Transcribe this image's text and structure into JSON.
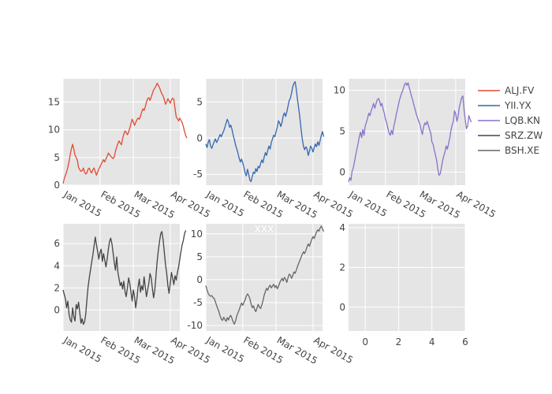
{
  "chart_data": {
    "type": "line",
    "layout": "subplot-grid-2x3",
    "colors": {
      "plot_bg": "#e5e5e5",
      "grid": "#ffffff",
      "text": "#444444"
    },
    "legend": {
      "placement": "right",
      "entries": [
        {
          "name": "ALJ.FV",
          "color": "#e24a33"
        },
        {
          "name": "YII.YX",
          "color": "#3467b0"
        },
        {
          "name": "LQB.KN",
          "color": "#8872cb"
        },
        {
          "name": "SRZ.ZW",
          "color": "#444444"
        },
        {
          "name": "BSH.XE",
          "color": "#666666"
        }
      ]
    },
    "panels": [
      {
        "series": "ALJ.FV",
        "color": "#e24a33",
        "xrange": [
          "2015-01-01",
          "2015-04-09"
        ],
        "yrange": [
          0,
          19.2
        ],
        "yticks": [
          0,
          5,
          10,
          15
        ],
        "xticks": [
          {
            "label": "Jan 2015",
            "date": "2015-01-01"
          },
          {
            "label": "Feb 2015",
            "date": "2015-02-01"
          },
          {
            "label": "Mar 2015",
            "date": "2015-03-01"
          },
          {
            "label": "Apr 2015",
            "date": "2015-04-01"
          }
        ],
        "start": "2015-01-01",
        "values": [
          0.3,
          1.2,
          1.8,
          2.4,
          3.2,
          4.3,
          5.6,
          6.6,
          7.4,
          6.5,
          5.4,
          5.0,
          4.5,
          3.2,
          2.8,
          2.5,
          2.6,
          3.1,
          2.4,
          2.0,
          2.2,
          2.9,
          3.1,
          2.5,
          2.2,
          2.8,
          3.1,
          2.4,
          1.8,
          2.4,
          2.9,
          3.3,
          3.8,
          4.2,
          4.6,
          4.2,
          4.8,
          5.2,
          5.8,
          5.5,
          5.2,
          5.0,
          4.8,
          5.1,
          6.1,
          6.9,
          7.5,
          8.0,
          7.6,
          7.3,
          8.4,
          9.2,
          9.8,
          9.5,
          9.1,
          9.6,
          10.3,
          11.1,
          11.9,
          11.4,
          10.8,
          11.3,
          11.8,
          12.1,
          11.9,
          12.5,
          13.2,
          13.8,
          13.5,
          14.1,
          15.0,
          15.6,
          15.8,
          15.3,
          15.9,
          16.6,
          17.2,
          17.5,
          17.9,
          18.4,
          18.0,
          17.6,
          17.0,
          16.5,
          16.1,
          15.4,
          14.6,
          15.0,
          15.6,
          15.2,
          14.8,
          15.4,
          15.7,
          15.5,
          13.8,
          12.3,
          12.0,
          11.6,
          12.1,
          11.7,
          11.3,
          10.6,
          9.7,
          8.9,
          8.5
        ]
      },
      {
        "series": "YII.YX",
        "color": "#3467b0",
        "xrange": [
          "2015-01-01",
          "2015-04-09"
        ],
        "yrange": [
          -6.5,
          8.2
        ],
        "yticks": [
          -5,
          0,
          5
        ],
        "xticks": [
          {
            "label": "Jan 2015",
            "date": "2015-01-01"
          },
          {
            "label": "Feb 2015",
            "date": "2015-02-01"
          },
          {
            "label": "Mar 2015",
            "date": "2015-03-01"
          },
          {
            "label": "Apr 2015",
            "date": "2015-04-01"
          }
        ],
        "start": "2015-01-01",
        "values": [
          -0.8,
          -1.3,
          -0.6,
          -0.2,
          -1.1,
          -1.4,
          -0.9,
          -0.5,
          -0.1,
          -0.6,
          -0.3,
          0.1,
          0.5,
          0.2,
          0.6,
          1.0,
          1.5,
          2.1,
          2.6,
          2.2,
          1.5,
          1.8,
          1.2,
          0.4,
          -0.2,
          -1.0,
          -1.5,
          -2.1,
          -2.8,
          -3.3,
          -2.9,
          -3.4,
          -4.0,
          -4.8,
          -5.2,
          -4.3,
          -5.0,
          -5.8,
          -6.0,
          -5.3,
          -4.7,
          -4.9,
          -4.2,
          -4.6,
          -3.9,
          -4.1,
          -3.5,
          -3.0,
          -3.4,
          -2.6,
          -2.0,
          -2.4,
          -1.7,
          -1.1,
          -1.5,
          -0.6,
          -0.1,
          0.4,
          0.2,
          0.9,
          1.5,
          2.4,
          2.1,
          1.6,
          2.2,
          3.1,
          3.5,
          3.0,
          3.6,
          4.4,
          5.2,
          5.5,
          6.2,
          7.1,
          7.6,
          7.8,
          6.7,
          5.3,
          4.1,
          2.8,
          1.2,
          -0.1,
          -1.1,
          -1.6,
          -1.2,
          -1.5,
          -2.4,
          -1.8,
          -1.1,
          -1.4,
          -1.9,
          -1.3,
          -0.8,
          -1.2,
          -0.5,
          -1.0,
          -0.3,
          0.4,
          0.9,
          0.2
        ]
      },
      {
        "series": "LQB.KN",
        "color": "#8872cb",
        "xrange": [
          "2015-01-01",
          "2015-04-09"
        ],
        "yrange": [
          -1.6,
          11.4
        ],
        "yticks": [
          0,
          5,
          10
        ],
        "xticks": [
          {
            "label": "Jan 2015",
            "date": "2015-01-01"
          },
          {
            "label": "Feb 2015",
            "date": "2015-02-01"
          },
          {
            "label": "Mar 2015",
            "date": "2015-03-01"
          },
          {
            "label": "Apr 2015",
            "date": "2015-04-01"
          }
        ],
        "start": "2015-01-01",
        "values": [
          -1.2,
          -0.7,
          -1.0,
          0.1,
          0.5,
          1.3,
          2.1,
          2.8,
          3.5,
          4.3,
          4.9,
          4.2,
          5.2,
          4.5,
          5.6,
          6.1,
          6.6,
          7.2,
          6.9,
          7.5,
          7.9,
          8.4,
          7.8,
          8.3,
          8.8,
          9.0,
          8.7,
          8.1,
          8.4,
          7.7,
          7.2,
          6.5,
          6.0,
          5.4,
          4.8,
          4.5,
          5.1,
          4.6,
          5.6,
          6.2,
          7.0,
          7.6,
          8.3,
          8.9,
          9.4,
          9.8,
          10.2,
          10.7,
          10.9,
          10.6,
          10.9,
          10.3,
          9.8,
          9.2,
          8.7,
          8.1,
          7.6,
          7.0,
          6.6,
          6.2,
          5.8,
          5.1,
          4.6,
          5.5,
          6.0,
          5.8,
          6.2,
          5.7,
          5.2,
          4.8,
          3.7,
          3.4,
          2.7,
          2.1,
          1.4,
          0.3,
          -0.4,
          -0.2,
          0.6,
          1.4,
          2.0,
          2.5,
          3.2,
          2.8,
          3.5,
          4.2,
          5.1,
          5.8,
          6.2,
          7.5,
          7.1,
          6.2,
          6.8,
          7.9,
          8.5,
          9.1,
          9.3,
          7.6,
          6.4,
          5.3,
          5.6,
          6.9,
          6.5,
          6.1
        ]
      },
      {
        "series": "SRZ.ZW",
        "color": "#444444",
        "xrange": [
          "2015-01-01",
          "2015-04-09"
        ],
        "yrange": [
          -1.9,
          7.8
        ],
        "yticks": [
          0,
          2,
          4,
          6
        ],
        "xticks": [
          {
            "label": "Jan 2015",
            "date": "2015-01-01"
          },
          {
            "label": "Feb 2015",
            "date": "2015-02-01"
          },
          {
            "label": "Mar 2015",
            "date": "2015-03-01"
          },
          {
            "label": "Apr 2015",
            "date": "2015-04-01"
          }
        ],
        "start": "2015-01-01",
        "values": [
          1.8,
          1.4,
          1.0,
          0.2,
          0.8,
          -0.4,
          -0.9,
          -1.1,
          0.2,
          -0.6,
          -1.0,
          0.5,
          0.1,
          0.7,
          -0.2,
          -1.2,
          -0.8,
          -1.3,
          -1.1,
          -0.4,
          0.9,
          2.1,
          2.9,
          3.6,
          4.3,
          5.0,
          5.8,
          6.6,
          5.9,
          5.3,
          4.6,
          5.2,
          5.5,
          4.4,
          5.1,
          4.5,
          3.9,
          4.6,
          5.5,
          6.2,
          6.5,
          6.0,
          5.2,
          4.3,
          3.6,
          4.8,
          3.4,
          2.8,
          2.2,
          2.5,
          1.9,
          2.6,
          1.7,
          1.2,
          2.0,
          2.9,
          2.4,
          1.6,
          0.8,
          1.8,
          1.2,
          0.2,
          1.0,
          2.1,
          2.8,
          1.6,
          2.2,
          1.8,
          3.0,
          2.1,
          1.2,
          1.8,
          2.4,
          3.3,
          2.9,
          1.9,
          1.1,
          1.8,
          3.1,
          4.4,
          5.4,
          6.2,
          6.9,
          7.1,
          6.3,
          5.2,
          4.1,
          3.3,
          2.2,
          1.5,
          2.4,
          3.4,
          2.9,
          2.3,
          3.1,
          2.7,
          3.4,
          3.9,
          4.6,
          5.3,
          5.9,
          6.3,
          6.9,
          7.2
        ]
      },
      {
        "series": "BSH.XE",
        "color": "#666666",
        "xrange": [
          "2015-01-01",
          "2015-04-09"
        ],
        "yrange": [
          -11.2,
          12.2
        ],
        "yticks": [
          -10,
          -5,
          0,
          5,
          10
        ],
        "xticks": [
          {
            "label": "Jan 2015",
            "date": "2015-01-01"
          },
          {
            "label": "Feb 2015",
            "date": "2015-02-01"
          },
          {
            "label": "Mar 2015",
            "date": "2015-03-01"
          },
          {
            "label": "Apr 2015",
            "date": "2015-04-01"
          }
        ],
        "start": "2015-01-01",
        "values": [
          -1.3,
          -2.2,
          -3.0,
          -3.4,
          -3.6,
          -3.5,
          -3.9,
          -4.1,
          -4.8,
          -5.6,
          -6.3,
          -7.0,
          -7.9,
          -8.6,
          -8.9,
          -8.2,
          -8.7,
          -9.1,
          -8.3,
          -8.8,
          -8.1,
          -7.8,
          -8.5,
          -9.2,
          -9.7,
          -9.0,
          -7.9,
          -7.2,
          -6.6,
          -5.8,
          -5.1,
          -5.6,
          -5.0,
          -4.4,
          -3.6,
          -3.1,
          -3.5,
          -4.2,
          -5.3,
          -6.1,
          -5.7,
          -6.5,
          -7.0,
          -6.2,
          -5.4,
          -6.0,
          -6.3,
          -5.5,
          -4.6,
          -3.4,
          -2.6,
          -1.9,
          -2.3,
          -1.6,
          -1.2,
          -1.8,
          -1.4,
          -1.0,
          -1.7,
          -1.3,
          -2.0,
          -1.5,
          -0.7,
          -0.2,
          0.3,
          -0.3,
          0.5,
          0.1,
          -0.6,
          0.4,
          1.2,
          1.0,
          0.3,
          0.9,
          1.7,
          1.4,
          2.1,
          2.9,
          3.6,
          4.2,
          4.9,
          5.5,
          6.1,
          5.7,
          6.4,
          7.2,
          7.8,
          7.3,
          8.1,
          8.8,
          9.4,
          9.0,
          9.7,
          10.4,
          10.9,
          10.6,
          11.3,
          11.7,
          11.1,
          10.5
        ],
        "annotation": "XXX"
      },
      {
        "series": null,
        "empty": true,
        "xrange": [
          -1,
          6
        ],
        "yrange": [
          -1.2,
          4.2
        ],
        "xticks": [
          0,
          2,
          4,
          6
        ],
        "yticks": [
          0,
          2,
          4
        ]
      }
    ]
  }
}
